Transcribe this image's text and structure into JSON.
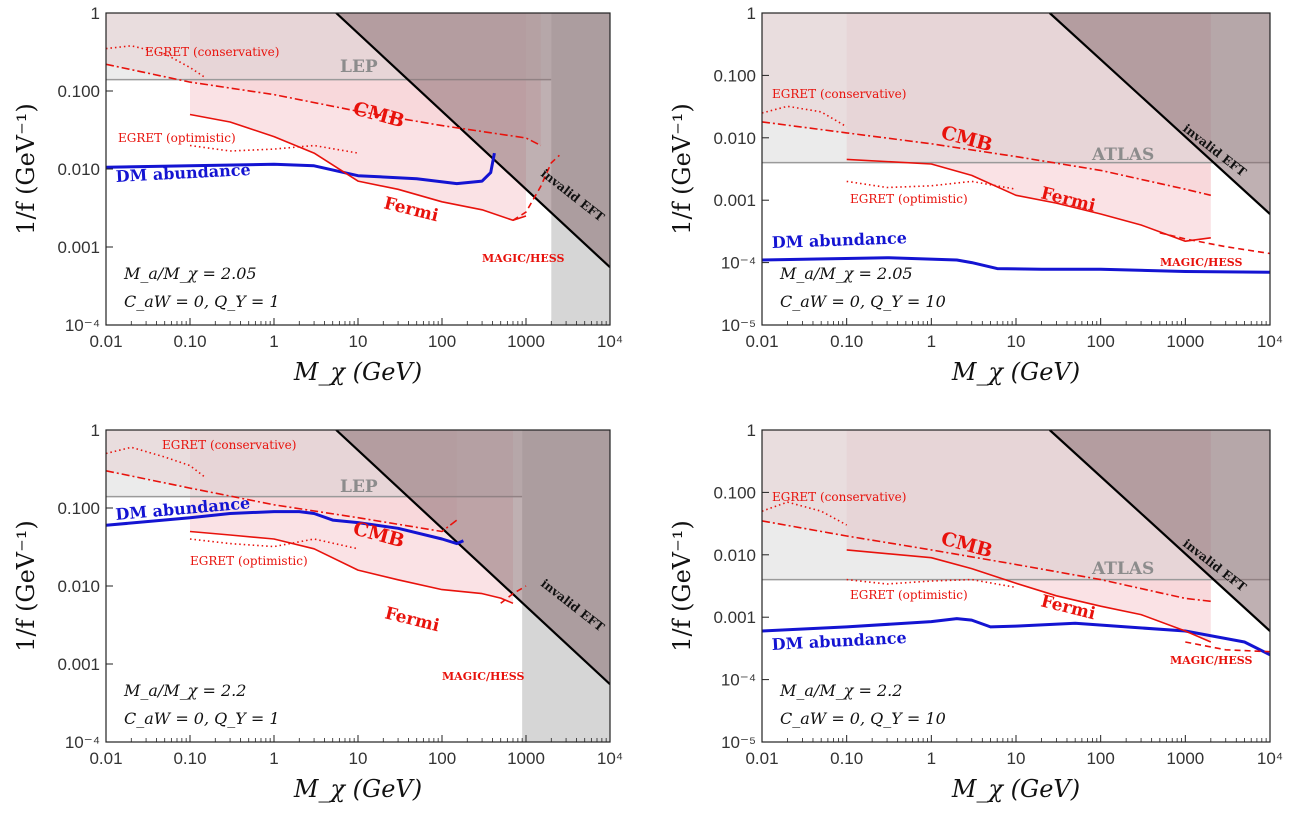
{
  "colors": {
    "excluded_pink": "#f7cfd3",
    "collider_gray": "#d2d2d2",
    "invalid_eft": "#8a6f72",
    "red": "#e8120c",
    "blue": "#1414d2",
    "collider_line": "#9a9a9a"
  },
  "chart_data": [
    {
      "type": "line",
      "title": "",
      "xlabel": "M_χ (GeV)",
      "ylabel": "1/f (GeV⁻¹)",
      "xscale": "log",
      "yscale": "log",
      "xlim": [
        0.01,
        10000
      ],
      "ylim": [
        0.0001,
        1
      ],
      "xticks": [
        "0.01",
        "0.10",
        "1",
        "10",
        "100",
        "1000",
        "10⁴"
      ],
      "yticks": [
        "1",
        "0.100",
        "0.010",
        "0.001",
        "10⁻⁴"
      ],
      "annotation": [
        "M_a/M_χ = 2.05",
        "C_aW = 0, Q_Y = 1"
      ],
      "labels": {
        "egret_cons": "EGRET (conservative)",
        "egret_opt": "EGRET (optimistic)",
        "cmb": "CMB",
        "fermi": "Fermi",
        "magic": "MAGIC/HESS",
        "dm": "DM abundance",
        "collider": "LEP",
        "eft": "invalid EFT"
      },
      "collider": {
        "name": "LEP",
        "y": 0.14,
        "xmax": 2000
      },
      "eft_boundary": {
        "x": [
          5.5,
          10000
        ],
        "y": [
          1,
          0.00055
        ]
      },
      "series": [
        {
          "name": "DM abundance",
          "x": [
            0.01,
            0.1,
            1,
            3,
            10,
            50,
            150,
            300,
            380,
            420
          ],
          "y": [
            0.0105,
            0.011,
            0.0115,
            0.011,
            0.0082,
            0.0075,
            0.0065,
            0.007,
            0.009,
            0.016
          ]
        },
        {
          "name": "CMB",
          "x": [
            0.01,
            0.1,
            1,
            10,
            100,
            1000,
            1500
          ],
          "y": [
            0.22,
            0.13,
            0.09,
            0.055,
            0.036,
            0.025,
            0.02
          ]
        },
        {
          "name": "Fermi",
          "x": [
            0.1,
            0.3,
            1,
            3,
            10,
            30,
            100,
            300,
            700,
            1000
          ],
          "y": [
            0.05,
            0.04,
            0.026,
            0.016,
            0.007,
            0.0055,
            0.0038,
            0.003,
            0.0022,
            0.0025
          ]
        },
        {
          "name": "MAGIC/HESS",
          "x": [
            700,
            1000,
            1500,
            2000,
            2500
          ],
          "y": [
            0.0022,
            0.0028,
            0.006,
            0.012,
            0.015
          ]
        },
        {
          "name": "EGRET (conservative)",
          "x": [
            0.01,
            0.02,
            0.05,
            0.1,
            0.15
          ],
          "y": [
            0.35,
            0.38,
            0.3,
            0.2,
            0.15
          ]
        },
        {
          "name": "EGRET (optimistic)",
          "x": [
            0.1,
            0.3,
            1,
            3,
            10
          ],
          "y": [
            0.02,
            0.017,
            0.018,
            0.02,
            0.016
          ]
        }
      ]
    },
    {
      "type": "line",
      "title": "",
      "xlabel": "M_χ (GeV)",
      "ylabel": "1/f (GeV⁻¹)",
      "xscale": "log",
      "yscale": "log",
      "xlim": [
        0.01,
        10000
      ],
      "ylim": [
        1e-05,
        1
      ],
      "xticks": [
        "0.01",
        "0.10",
        "1",
        "10",
        "100",
        "1000",
        "10⁴"
      ],
      "yticks": [
        "1",
        "0.100",
        "0.010",
        "0.001",
        "10⁻⁴",
        "10⁻⁵"
      ],
      "annotation": [
        "M_a/M_χ = 2.05",
        "C_aW = 0, Q_Y = 10"
      ],
      "labels": {
        "egret_cons": "EGRET (conservative)",
        "egret_opt": "EGRET (optimistic)",
        "cmb": "CMB",
        "fermi": "Fermi",
        "magic": "MAGIC/HESS",
        "dm": "DM abundance",
        "collider": "ATLAS",
        "eft": "invalid EFT"
      },
      "collider": {
        "name": "ATLAS",
        "y": 0.004,
        "xmax": 10000
      },
      "eft_boundary": {
        "x": [
          25,
          10000
        ],
        "y": [
          1,
          0.0006
        ]
      },
      "series": [
        {
          "name": "DM abundance",
          "x": [
            0.01,
            0.3,
            2,
            3,
            6,
            20,
            100,
            1000,
            10000
          ],
          "y": [
            0.00011,
            0.00012,
            0.00011,
            0.0001,
            8e-05,
            7.8e-05,
            7.8e-05,
            7.2e-05,
            7e-05
          ]
        },
        {
          "name": "CMB",
          "x": [
            0.01,
            0.1,
            1,
            10,
            100,
            1000,
            2000
          ],
          "y": [
            0.018,
            0.012,
            0.008,
            0.005,
            0.003,
            0.0015,
            0.0012
          ]
        },
        {
          "name": "Fermi",
          "x": [
            0.1,
            1,
            3,
            10,
            30,
            100,
            300,
            1000,
            2000
          ],
          "y": [
            0.0045,
            0.0038,
            0.0025,
            0.0012,
            0.0009,
            0.0006,
            0.0004,
            0.00022,
            0.00025
          ]
        },
        {
          "name": "MAGIC/HESS",
          "x": [
            500,
            1000,
            3000,
            10000
          ],
          "y": [
            0.0003,
            0.00024,
            0.00018,
            0.00014
          ]
        },
        {
          "name": "EGRET (conservative)",
          "x": [
            0.01,
            0.02,
            0.05,
            0.1
          ],
          "y": [
            0.025,
            0.032,
            0.026,
            0.015
          ]
        },
        {
          "name": "EGRET (optimistic)",
          "x": [
            0.1,
            0.3,
            1,
            3,
            10
          ],
          "y": [
            0.002,
            0.0016,
            0.0017,
            0.002,
            0.0015
          ]
        }
      ]
    },
    {
      "type": "line",
      "title": "",
      "xlabel": "M_χ (GeV)",
      "ylabel": "1/f (GeV⁻¹)",
      "xscale": "log",
      "yscale": "log",
      "xlim": [
        0.01,
        10000
      ],
      "ylim": [
        0.0001,
        1
      ],
      "xticks": [
        "0.01",
        "0.10",
        "1",
        "10",
        "100",
        "1000",
        "10⁴"
      ],
      "yticks": [
        "1",
        "0.100",
        "0.010",
        "0.001",
        "10⁻⁴"
      ],
      "annotation": [
        "M_a/M_χ = 2.2",
        "C_aW = 0, Q_Y = 1"
      ],
      "labels": {
        "egret_cons": "EGRET (conservative)",
        "egret_opt": "EGRET (optimistic)",
        "cmb": "CMB",
        "fermi": "Fermi",
        "magic": "MAGIC/HESS",
        "dm": "DM abundance",
        "collider": "LEP",
        "eft": "invalid EFT"
      },
      "collider": {
        "name": "LEP",
        "y": 0.14,
        "xmax": 900
      },
      "eft_boundary": {
        "x": [
          5.5,
          10000
        ],
        "y": [
          1,
          0.00055
        ]
      },
      "series": [
        {
          "name": "DM abundance",
          "x": [
            0.01,
            0.1,
            0.3,
            1,
            2,
            3,
            5,
            10,
            30,
            100,
            150,
            180
          ],
          "y": [
            0.06,
            0.075,
            0.085,
            0.09,
            0.09,
            0.085,
            0.07,
            0.065,
            0.055,
            0.04,
            0.035,
            0.038
          ]
        },
        {
          "name": "CMB",
          "x": [
            0.01,
            0.1,
            1,
            10,
            100,
            150
          ],
          "y": [
            0.3,
            0.18,
            0.11,
            0.075,
            0.05,
            0.07
          ]
        },
        {
          "name": "Fermi",
          "x": [
            0.1,
            0.3,
            1,
            3,
            10,
            30,
            100,
            300,
            500,
            700
          ],
          "y": [
            0.05,
            0.045,
            0.04,
            0.03,
            0.016,
            0.012,
            0.009,
            0.008,
            0.007,
            0.006
          ]
        },
        {
          "name": "MAGIC/HESS",
          "x": [
            500,
            700,
            1000
          ],
          "y": [
            0.006,
            0.008,
            0.01
          ]
        },
        {
          "name": "EGRET (conservative)",
          "x": [
            0.01,
            0.02,
            0.05,
            0.1,
            0.15
          ],
          "y": [
            0.5,
            0.6,
            0.45,
            0.35,
            0.25
          ]
        },
        {
          "name": "EGRET (optimistic)",
          "x": [
            0.1,
            0.3,
            1,
            3,
            10
          ],
          "y": [
            0.04,
            0.035,
            0.032,
            0.04,
            0.03
          ]
        }
      ]
    },
    {
      "type": "line",
      "title": "",
      "xlabel": "M_χ (GeV)",
      "ylabel": "1/f (GeV⁻¹)",
      "xscale": "log",
      "yscale": "log",
      "xlim": [
        0.01,
        10000
      ],
      "ylim": [
        1e-05,
        1
      ],
      "xticks": [
        "0.01",
        "0.10",
        "1",
        "10",
        "100",
        "1000",
        "10⁴"
      ],
      "yticks": [
        "1",
        "0.100",
        "0.010",
        "0.001",
        "10⁻⁴",
        "10⁻⁵"
      ],
      "annotation": [
        "M_a/M_χ = 2.2",
        "C_aW = 0, Q_Y = 10"
      ],
      "labels": {
        "egret_cons": "EGRET (conservative)",
        "egret_opt": "EGRET (optimistic)",
        "cmb": "CMB",
        "fermi": "Fermi",
        "magic": "MAGIC/HESS",
        "dm": "DM abundance",
        "collider": "ATLAS",
        "eft": "invalid EFT"
      },
      "collider": {
        "name": "ATLAS",
        "y": 0.004,
        "xmax": 10000
      },
      "eft_boundary": {
        "x": [
          25,
          10000
        ],
        "y": [
          1,
          0.0006
        ]
      },
      "series": [
        {
          "name": "DM abundance",
          "x": [
            0.01,
            0.1,
            1,
            2,
            3,
            5,
            10,
            50,
            200,
            1000,
            5000,
            10000
          ],
          "y": [
            0.0006,
            0.0007,
            0.00085,
            0.00095,
            0.0009,
            0.0007,
            0.00072,
            0.0008,
            0.0007,
            0.0006,
            0.0004,
            0.00025
          ]
        },
        {
          "name": "CMB",
          "x": [
            0.01,
            0.1,
            1,
            10,
            100,
            1000,
            2000
          ],
          "y": [
            0.035,
            0.02,
            0.012,
            0.007,
            0.004,
            0.002,
            0.0018
          ]
        },
        {
          "name": "Fermi",
          "x": [
            0.1,
            1,
            3,
            10,
            30,
            100,
            300,
            1000,
            2000
          ],
          "y": [
            0.012,
            0.009,
            0.006,
            0.0035,
            0.0022,
            0.0015,
            0.0011,
            0.0006,
            0.0004
          ]
        },
        {
          "name": "MAGIC/HESS",
          "x": [
            1000,
            3000,
            10000
          ],
          "y": [
            0.0004,
            0.0003,
            0.00028
          ]
        },
        {
          "name": "EGRET (conservative)",
          "x": [
            0.01,
            0.02,
            0.05,
            0.1
          ],
          "y": [
            0.05,
            0.07,
            0.05,
            0.03
          ]
        },
        {
          "name": "EGRET (optimistic)",
          "x": [
            0.1,
            0.3,
            1,
            3,
            10
          ],
          "y": [
            0.004,
            0.0034,
            0.0038,
            0.004,
            0.003
          ]
        }
      ]
    }
  ]
}
